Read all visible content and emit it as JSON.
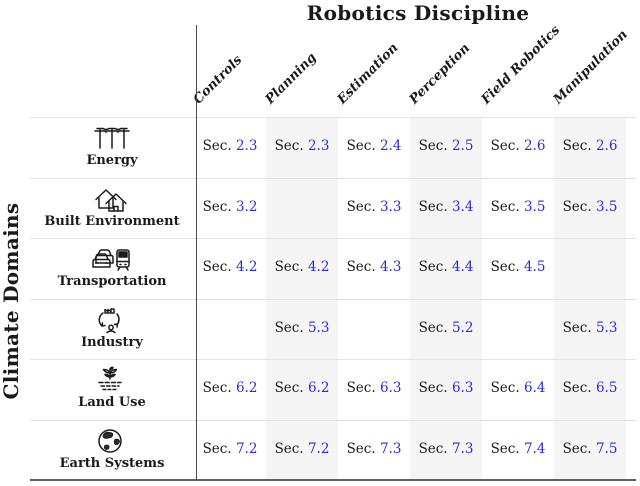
{
  "title": "Robotics Discipline",
  "y_axis_label": "Climate Domains",
  "sec_prefix": "Sec.",
  "columns": [
    "Controls",
    "Planning",
    "Estimation",
    "Perception",
    "Field Robotics",
    "Manipulation"
  ],
  "rows": [
    {
      "label": "Energy",
      "icon": "power-lines-icon",
      "cells": [
        "2.3",
        "2.3",
        "2.4",
        "2.5",
        "2.6",
        "2.6"
      ]
    },
    {
      "label": "Built Environment",
      "icon": "houses-icon",
      "cells": [
        "3.2",
        "",
        "3.3",
        "3.4",
        "3.5",
        "3.5"
      ]
    },
    {
      "label": "Transportation",
      "icon": "vehicles-icon",
      "cells": [
        "4.2",
        "4.2",
        "4.3",
        "4.4",
        "4.5",
        ""
      ]
    },
    {
      "label": "Industry",
      "icon": "circular-economy-icon",
      "cells": [
        "",
        "5.3",
        "",
        "5.2",
        "",
        "5.3"
      ]
    },
    {
      "label": "Land Use",
      "icon": "sprout-icon",
      "cells": [
        "6.2",
        "6.2",
        "6.3",
        "6.3",
        "6.4",
        "6.5"
      ]
    },
    {
      "label": "Earth Systems",
      "icon": "globe-icon",
      "cells": [
        "7.2",
        "7.2",
        "7.3",
        "7.3",
        "7.4",
        "7.5"
      ]
    }
  ],
  "colors": {
    "link_blue": "#2b2bd5",
    "stripe_gray": "#f5f5f5",
    "rule_light": "#e3e3e3",
    "rule_dark": "#5f5f5f",
    "text_black": "#1a1a1a"
  }
}
